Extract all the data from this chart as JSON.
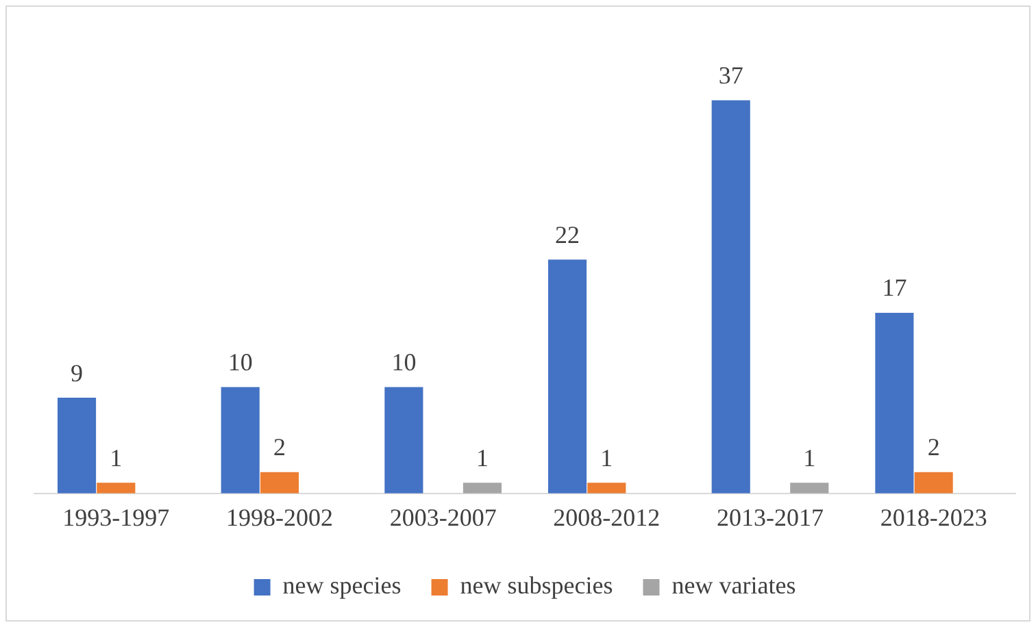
{
  "chart_data": {
    "type": "bar",
    "categories": [
      "1993-1997",
      "1998-2002",
      "2003-2007",
      "2008-2012",
      "2013-2017",
      "2018-2023"
    ],
    "series": [
      {
        "name": "new species",
        "color": "#4472c4",
        "values": [
          9,
          10,
          10,
          22,
          37,
          17
        ]
      },
      {
        "name": "new subspecies",
        "color": "#ed7d31",
        "values": [
          1,
          2,
          null,
          1,
          null,
          2
        ]
      },
      {
        "name": "new variates",
        "color": "#a5a5a5",
        "values": [
          null,
          null,
          1,
          null,
          1,
          null
        ]
      }
    ],
    "data_labels": true,
    "legend": "bottom",
    "grid": false
  }
}
